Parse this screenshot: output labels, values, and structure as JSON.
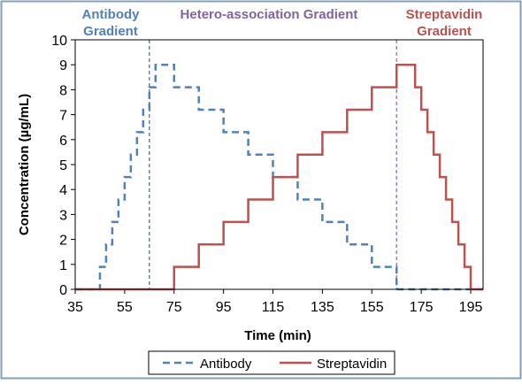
{
  "chart_data": {
    "type": "line",
    "title": "",
    "xlabel": "Time (min)",
    "ylabel": "Concentration (µg/mL)",
    "xlim": [
      35,
      200
    ],
    "ylim": [
      0,
      10
    ],
    "x_ticks": [
      35,
      55,
      75,
      95,
      115,
      135,
      155,
      175,
      195
    ],
    "y_ticks": [
      0,
      1,
      2,
      3,
      4,
      5,
      6,
      7,
      8,
      9,
      10
    ],
    "grid": false,
    "legend_position": "bottom",
    "annotations": [
      {
        "lines": [
          "Antibody",
          "Gradient"
        ],
        "color": "#4f81bd",
        "anchor_x": 45
      },
      {
        "lines": [
          "Hetero-association Gradient"
        ],
        "color": "#8064a2",
        "anchor_x": 115
      },
      {
        "lines": [
          "Streptavidin",
          "Gradient"
        ],
        "color": "#c0504d",
        "anchor_x": 180
      }
    ],
    "vlines": [
      {
        "x": 65,
        "color": "#4f5e8a"
      },
      {
        "x": 165,
        "color": "#8064a2"
      }
    ],
    "series": [
      {
        "name": "Antibody",
        "color": "#4f81bd",
        "style": "dashed",
        "points": [
          [
            35,
            0
          ],
          [
            45,
            0
          ],
          [
            45,
            0.9
          ],
          [
            47.5,
            0.9
          ],
          [
            47.5,
            1.8
          ],
          [
            50,
            1.8
          ],
          [
            50,
            2.7
          ],
          [
            52.5,
            2.7
          ],
          [
            52.5,
            3.6
          ],
          [
            55,
            3.6
          ],
          [
            55,
            4.5
          ],
          [
            57.5,
            4.5
          ],
          [
            57.5,
            5.4
          ],
          [
            60,
            5.4
          ],
          [
            60,
            6.3
          ],
          [
            62.5,
            6.3
          ],
          [
            62.5,
            7.2
          ],
          [
            65,
            7.2
          ],
          [
            65,
            8.1
          ],
          [
            67.5,
            8.1
          ],
          [
            67.5,
            9
          ],
          [
            75,
            9
          ],
          [
            75,
            8.1
          ],
          [
            85,
            8.1
          ],
          [
            85,
            7.2
          ],
          [
            95,
            7.2
          ],
          [
            95,
            6.3
          ],
          [
            105,
            6.3
          ],
          [
            105,
            5.4
          ],
          [
            115,
            5.4
          ],
          [
            115,
            4.5
          ],
          [
            125,
            4.5
          ],
          [
            125,
            3.6
          ],
          [
            135,
            3.6
          ],
          [
            135,
            2.7
          ],
          [
            145,
            2.7
          ],
          [
            145,
            1.8
          ],
          [
            155,
            1.8
          ],
          [
            155,
            0.9
          ],
          [
            165,
            0.9
          ],
          [
            165,
            0
          ],
          [
            200,
            0
          ]
        ]
      },
      {
        "name": "Streptavidin",
        "color": "#c0504d",
        "style": "solid",
        "points": [
          [
            35,
            0
          ],
          [
            75,
            0
          ],
          [
            75,
            0.9
          ],
          [
            85,
            0.9
          ],
          [
            85,
            1.8
          ],
          [
            95,
            1.8
          ],
          [
            95,
            2.7
          ],
          [
            105,
            2.7
          ],
          [
            105,
            3.6
          ],
          [
            115,
            3.6
          ],
          [
            115,
            4.5
          ],
          [
            125,
            4.5
          ],
          [
            125,
            5.4
          ],
          [
            135,
            5.4
          ],
          [
            135,
            6.3
          ],
          [
            145,
            6.3
          ],
          [
            145,
            7.2
          ],
          [
            155,
            7.2
          ],
          [
            155,
            8.1
          ],
          [
            165,
            8.1
          ],
          [
            165,
            9
          ],
          [
            172.5,
            9
          ],
          [
            172.5,
            8.1
          ],
          [
            175,
            8.1
          ],
          [
            175,
            7.2
          ],
          [
            177.5,
            7.2
          ],
          [
            177.5,
            6.3
          ],
          [
            180,
            6.3
          ],
          [
            180,
            5.4
          ],
          [
            182.5,
            5.4
          ],
          [
            182.5,
            4.5
          ],
          [
            185,
            4.5
          ],
          [
            185,
            3.6
          ],
          [
            187.5,
            3.6
          ],
          [
            187.5,
            2.7
          ],
          [
            190,
            2.7
          ],
          [
            190,
            1.8
          ],
          [
            192.5,
            1.8
          ],
          [
            192.5,
            0.9
          ],
          [
            195,
            0.9
          ],
          [
            195,
            0
          ],
          [
            200,
            0
          ]
        ]
      }
    ]
  }
}
